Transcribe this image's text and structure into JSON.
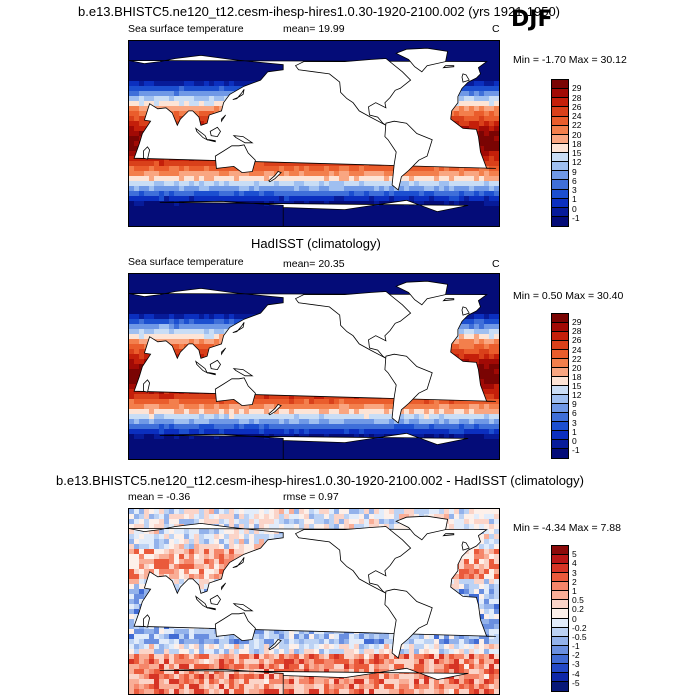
{
  "season": "DJF",
  "panels": [
    {
      "title": "b.e13.BHISTC5.ne120_t12.cesm-ihesp-hires1.0.30-1920-2100.002 (yrs 1921-1950)",
      "left_label": "Sea surface temperature",
      "mean_label": "mean=  19.99",
      "units": "C",
      "minmax": "Min =  -1.70 Max =  30.12",
      "colorbar_labels": [
        "29",
        "28",
        "26",
        "24",
        "22",
        "20",
        "18",
        "15",
        "12",
        "9",
        "6",
        "3",
        "1",
        "0",
        "-1"
      ]
    },
    {
      "title": "HadISST (climatology)",
      "left_label": "Sea surface temperature",
      "mean_label": "mean=  20.35",
      "units": "C",
      "minmax": "Min =  0.50 Max =  30.40",
      "colorbar_labels": [
        "29",
        "28",
        "26",
        "24",
        "22",
        "20",
        "18",
        "15",
        "12",
        "9",
        "6",
        "3",
        "1",
        "0",
        "-1"
      ]
    },
    {
      "title": "b.e13.BHISTC5.ne120_t12.cesm-ihesp-hires1.0.30-1920-2100.002 - HadISST (climatology)",
      "left_label": "mean =  -0.36",
      "mean_label": "rmse =    0.97",
      "units": "",
      "minmax": "Min =  -4.34 Max =   7.88",
      "colorbar_labels": [
        "5",
        "4",
        "3",
        "2",
        "1",
        "0.5",
        "0.2",
        "0",
        "-0.2",
        "-0.5",
        "-1",
        "-2",
        "-3",
        "-4",
        "-5"
      ]
    }
  ],
  "colors": {
    "sst_scale": [
      "#7a0403",
      "#a10a05",
      "#c41f0a",
      "#d9401a",
      "#ea5d2c",
      "#f37f4c",
      "#f9a681",
      "#fde4d6",
      "#c9ddf5",
      "#9fbff0",
      "#6f98e6",
      "#3f6fd9",
      "#1c4fd0",
      "#0b2fbf",
      "#071b99",
      "#040c78"
    ],
    "diff_scale": [
      "#8b0a0a",
      "#b91616",
      "#d63425",
      "#ea5a3b",
      "#f5866a",
      "#f9ae97",
      "#fbd4c8",
      "#fdf0ea",
      "#e2ecfa",
      "#bcd2f4",
      "#93b2eb",
      "#6a8fe0",
      "#416bd4",
      "#2348c5",
      "#0e27a8",
      "#081878"
    ],
    "land": "#ffffff"
  }
}
